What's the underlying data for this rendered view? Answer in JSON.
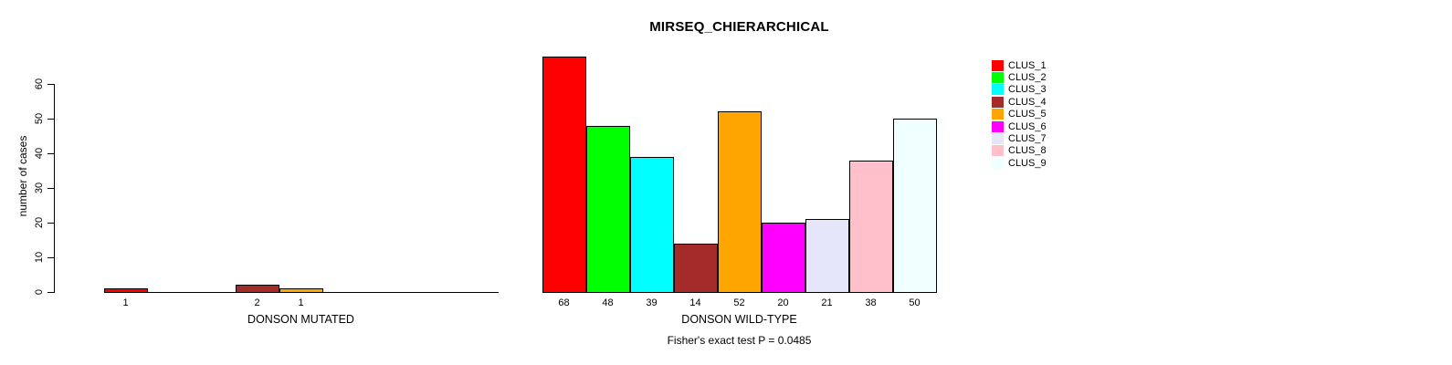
{
  "figure": {
    "title": "MIRSEQ_CHIERARCHICAL",
    "footnote": "Fisher's exact test P = 0.0485"
  },
  "chart_data": {
    "type": "bar",
    "title": "MIRSEQ_CHIERARCHICAL",
    "ylabel": "number of cases",
    "xlabel": "",
    "categories": [
      "DONSON MUTATED",
      "DONSON WILD-TYPE"
    ],
    "yticks": [
      0,
      10,
      20,
      30,
      40,
      50,
      60
    ],
    "ylim": [
      0,
      68
    ],
    "grid": false,
    "legend_position": "right",
    "bar_value_labels_shown_when_nonzero": true,
    "series": [
      {
        "name": "CLUS_1",
        "color": "#FF0000",
        "values": [
          1,
          68
        ]
      },
      {
        "name": "CLUS_2",
        "color": "#00FF00",
        "values": [
          0,
          48
        ]
      },
      {
        "name": "CLUS_3",
        "color": "#00FFFF",
        "values": [
          0,
          39
        ]
      },
      {
        "name": "CLUS_4",
        "color": "#A52A2A",
        "values": [
          2,
          14
        ]
      },
      {
        "name": "CLUS_5",
        "color": "#FFA500",
        "values": [
          1,
          52
        ]
      },
      {
        "name": "CLUS_6",
        "color": "#FF00FF",
        "values": [
          0,
          20
        ]
      },
      {
        "name": "CLUS_7",
        "color": "#E6E6FA",
        "values": [
          0,
          21
        ]
      },
      {
        "name": "CLUS_8",
        "color": "#FFC0CB",
        "values": [
          0,
          38
        ]
      },
      {
        "name": "CLUS_9",
        "color": "#F0FFFF",
        "values": [
          0,
          50
        ]
      }
    ],
    "annotation": "Fisher's exact test P = 0.0485"
  }
}
